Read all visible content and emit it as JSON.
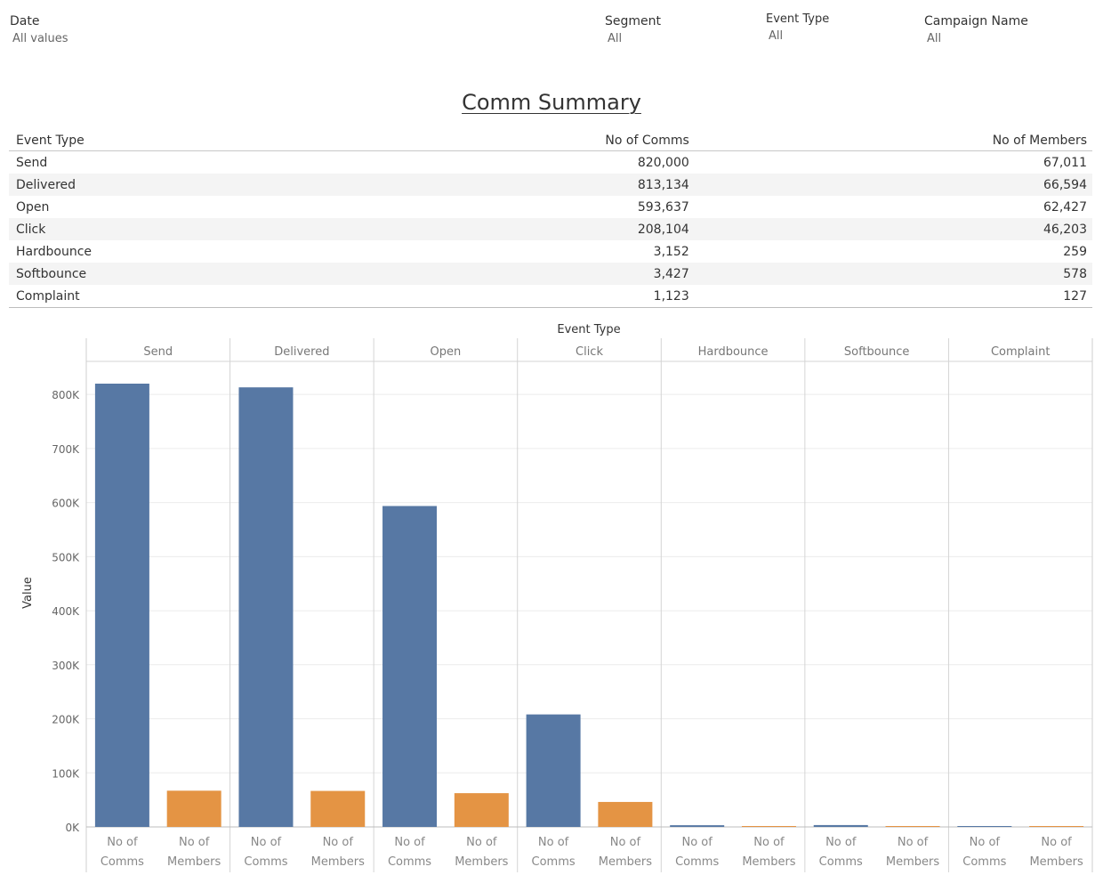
{
  "filters": {
    "date": {
      "label": "Date",
      "value": "All values"
    },
    "segment": {
      "label": "Segment",
      "value": "All"
    },
    "event_type": {
      "label": "Event Type",
      "value": "All"
    },
    "campaign_name": {
      "label": "Campaign Name",
      "value": "All"
    }
  },
  "summary": {
    "title": "Comm Summary",
    "headers": [
      "Event Type",
      "No of Comms",
      "No of Members"
    ],
    "rows": [
      [
        "Send",
        "820,000",
        "67,011"
      ],
      [
        "Delivered",
        "813,134",
        "66,594"
      ],
      [
        "Open",
        "593,637",
        "62,427"
      ],
      [
        "Click",
        "208,104",
        "46,203"
      ],
      [
        "Hardbounce",
        "3,152",
        "259"
      ],
      [
        "Softbounce",
        "3,427",
        "578"
      ],
      [
        "Complaint",
        "1,123",
        "127"
      ]
    ]
  },
  "chart_data": {
    "type": "bar",
    "xlabel": "Event Type",
    "ylabel": "Value",
    "ylim": [
      0,
      830000
    ],
    "yticks": [
      0,
      100000,
      200000,
      300000,
      400000,
      500000,
      600000,
      700000,
      800000
    ],
    "ytick_labels": [
      "0K",
      "100K",
      "200K",
      "300K",
      "400K",
      "500K",
      "600K",
      "700K",
      "800K"
    ],
    "categories": [
      "Send",
      "Delivered",
      "Open",
      "Click",
      "Hardbounce",
      "Softbounce",
      "Complaint"
    ],
    "measure_labels": [
      [
        "No of",
        "Comms"
      ],
      [
        "No of",
        "Members"
      ]
    ],
    "series": [
      {
        "name": "No of Comms",
        "color": "#5778a4",
        "values": [
          820000,
          813134,
          593637,
          208104,
          3152,
          3427,
          1123
        ]
      },
      {
        "name": "No of Members",
        "color": "#e49444",
        "values": [
          67011,
          66594,
          62427,
          46203,
          259,
          578,
          127
        ]
      }
    ],
    "grid": true
  }
}
